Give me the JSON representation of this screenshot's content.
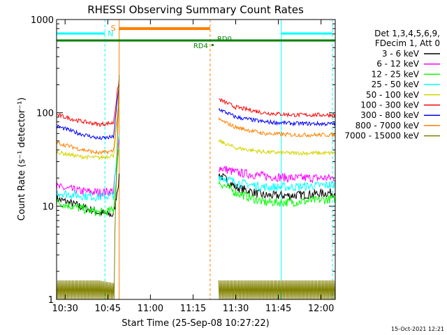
{
  "chart_data": {
    "type": "line",
    "title": "RHESSI Observing Summary Count Rates",
    "xlabel": "Start Time (25-Sep-08 10:27:22)",
    "ylabel": "Count Rate (s⁻¹ detector⁻¹)",
    "y_scale": "log",
    "ylim": [
      1,
      1000
    ],
    "xlim": [
      "10:27",
      "12:05"
    ],
    "x_ticks": [
      "10:30",
      "10:45",
      "11:00",
      "11:15",
      "11:30",
      "11:45",
      "12:00"
    ],
    "y_ticks": [
      "1",
      "10",
      "100",
      "1000"
    ],
    "footer_date": "15-Oct-2021 12:21",
    "legend_header": [
      "Det 1,3,4,5,6,9,",
      "FDecim 1, Att 0"
    ],
    "series": [
      {
        "name": "3 - 6 keV",
        "color": "#000000",
        "x": [
          "10:27",
          "10:35",
          "10:42",
          "10:47",
          "10:49",
          "10:50",
          "11:21",
          "11:24",
          "11:30",
          "11:40",
          "11:50",
          "12:05"
        ],
        "y": [
          12,
          10,
          8.5,
          8,
          20,
          null,
          null,
          22,
          16,
          13,
          13,
          14
        ]
      },
      {
        "name": "6 - 12 keV",
        "color": "#ff00ff",
        "x": [
          "10:27",
          "10:35",
          "10:42",
          "10:47",
          "10:49",
          "10:50",
          "11:21",
          "11:24",
          "11:30",
          "11:40",
          "11:50",
          "12:05"
        ],
        "y": [
          16,
          14.5,
          14,
          14.5,
          50,
          null,
          null,
          26,
          23,
          21,
          20,
          20
        ]
      },
      {
        "name": "12 - 25 keV",
        "color": "#00ff00",
        "x": [
          "10:27",
          "10:35",
          "10:42",
          "10:47",
          "10:49",
          "10:50",
          "11:21",
          "11:24",
          "11:30",
          "11:40",
          "11:50",
          "12:05"
        ],
        "y": [
          11,
          9.5,
          8.5,
          9,
          45,
          null,
          null,
          18,
          14,
          11,
          11,
          12
        ]
      },
      {
        "name": "25 - 50 keV",
        "color": "#00ffff",
        "x": [
          "10:27",
          "10:35",
          "10:42",
          "10:47",
          "10:49",
          "10:50",
          "11:21",
          "11:24",
          "11:30",
          "11:40",
          "11:50",
          "12:05"
        ],
        "y": [
          14,
          13,
          12.5,
          13,
          60,
          null,
          null,
          21,
          18,
          16,
          16,
          17
        ]
      },
      {
        "name": "50 - 100 keV",
        "color": "#d4d400",
        "x": [
          "10:27",
          "10:35",
          "10:42",
          "10:47",
          "10:49",
          "10:50",
          "11:21",
          "11:24",
          "11:30",
          "11:40",
          "11:50",
          "12:05"
        ],
        "y": [
          38,
          34,
          33,
          35,
          120,
          null,
          null,
          50,
          42,
          38,
          37,
          37
        ]
      },
      {
        "name": "100 - 300 keV",
        "color": "#ff0000",
        "x": [
          "10:27",
          "10:35",
          "10:42",
          "10:47",
          "10:49",
          "10:50",
          "11:21",
          "11:24",
          "11:30",
          "11:40",
          "11:50",
          "12:05"
        ],
        "y": [
          95,
          82,
          75,
          78,
          230,
          null,
          null,
          140,
          115,
          100,
          95,
          95
        ]
      },
      {
        "name": "300 - 800 keV",
        "color": "#0000ff",
        "x": [
          "10:27",
          "10:35",
          "10:42",
          "10:47",
          "10:49",
          "10:50",
          "11:21",
          "11:24",
          "11:30",
          "11:40",
          "11:50",
          "12:05"
        ],
        "y": [
          72,
          60,
          53,
          55,
          200,
          null,
          null,
          110,
          90,
          80,
          77,
          76
        ]
      },
      {
        "name": "800 - 7000 keV",
        "color": "#ff8000",
        "x": [
          "10:27",
          "10:35",
          "10:42",
          "10:47",
          "10:49",
          "10:50",
          "11:21",
          "11:24",
          "11:30",
          "11:40",
          "11:50",
          "12:05"
        ],
        "y": [
          48,
          41,
          37,
          39,
          140,
          null,
          null,
          85,
          70,
          60,
          58,
          58
        ]
      },
      {
        "name": "7000 - 15000 keV",
        "color": "#808000",
        "x": [
          "10:27",
          "10:35",
          "10:42",
          "10:47",
          "10:49",
          "10:50",
          "11:21",
          "11:24",
          "11:30",
          "11:40",
          "11:50",
          "12:05"
        ],
        "y": [
          1.6,
          1.6,
          1.6,
          1.5,
          250,
          null,
          null,
          1.6,
          1.6,
          1.6,
          1.6,
          1.6
        ]
      }
    ],
    "flags": [
      {
        "label": "N",
        "color": "#00ffff",
        "spans": [
          [
            "10:27",
            "10:44"
          ],
          [
            "11:46",
            "12:04"
          ]
        ]
      },
      {
        "label": "S",
        "color": "#ff8000",
        "spans": [
          [
            "10:49",
            "11:21"
          ]
        ]
      },
      {
        "label": "RD4",
        "color": "#008000",
        "spans": [
          [
            "10:27",
            "12:05"
          ]
        ]
      },
      {
        "label": "RD0",
        "color": "#008000",
        "spans": []
      }
    ]
  }
}
